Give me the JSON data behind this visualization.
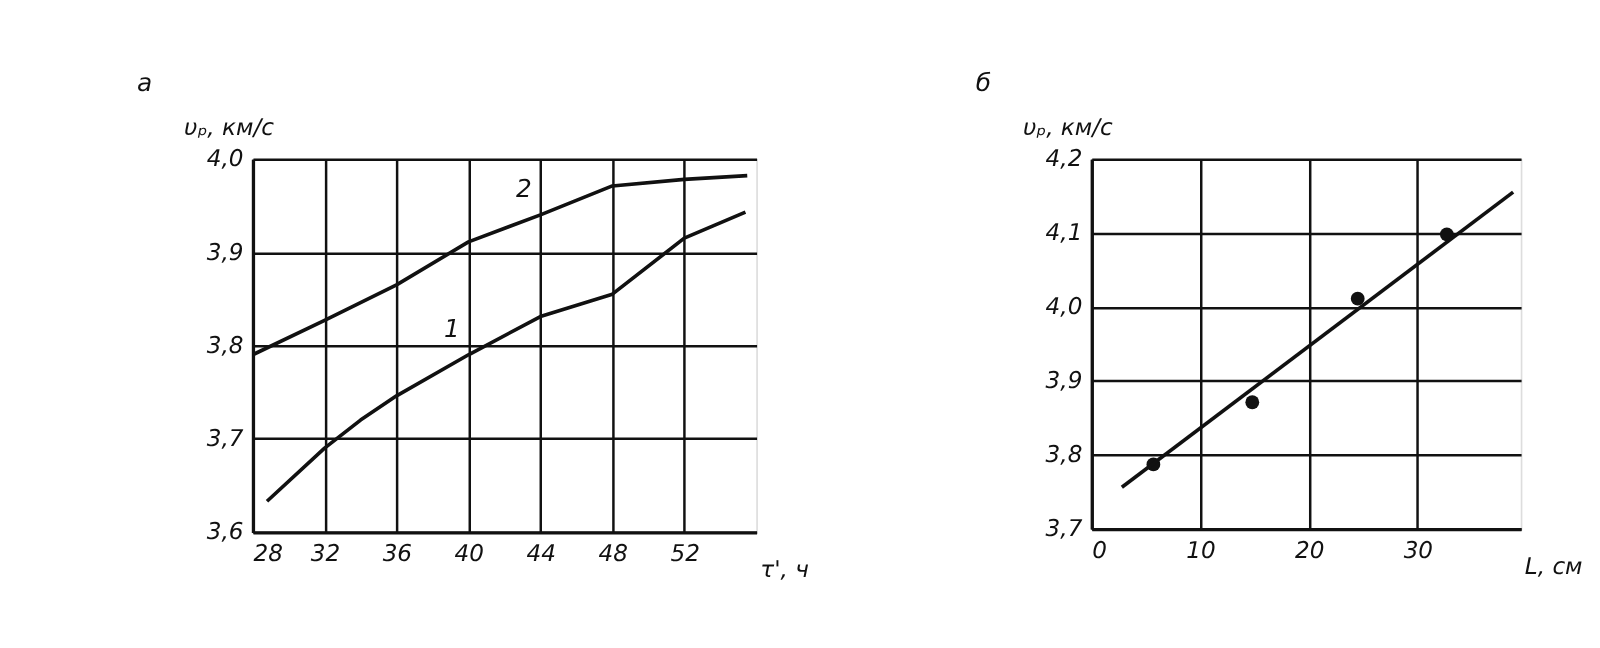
{
  "chart_data": [
    {
      "type": "line",
      "title": "а",
      "xlabel": "τ', ч",
      "ylabel": "υₚ, км/с",
      "grid": true,
      "line_style": "solid",
      "xlim": [
        28,
        56
      ],
      "xticks": [
        28,
        32,
        36,
        40,
        44,
        48,
        52
      ],
      "ylim": [
        3.6,
        4.0
      ],
      "yticks": [
        {
          "value": 3.6,
          "label": "3,6"
        },
        {
          "value": 3.7,
          "label": "3,7"
        },
        {
          "value": 3.8,
          "label": "3,8"
        },
        {
          "value": 3.9,
          "label": "3,9"
        },
        {
          "value": 4.0,
          "label": "4,0"
        }
      ],
      "series": [
        {
          "name": "1",
          "color": "#111111",
          "x": [
            28.8,
            32,
            34,
            36,
            40,
            44,
            48,
            52,
            55.4
          ],
          "values": [
            3.633,
            3.69,
            3.72,
            3.746,
            3.79,
            3.831,
            3.855,
            3.915,
            3.943
          ]
        },
        {
          "name": "2",
          "color": "#111111",
          "x": [
            28,
            32,
            36,
            40,
            44,
            48,
            52,
            55.5
          ],
          "values": [
            3.79,
            3.827,
            3.865,
            3.911,
            3.94,
            3.971,
            3.978,
            3.982
          ]
        }
      ]
    },
    {
      "type": "scatter",
      "title": "б",
      "xlabel": "L, см",
      "ylabel": "υₚ, км/с",
      "grid": true,
      "marker": "circle",
      "xlim": [
        0,
        39.5
      ],
      "xticks": [
        0,
        10,
        20,
        30
      ],
      "ylim": [
        3.7,
        4.2
      ],
      "yticks": [
        {
          "value": 3.7,
          "label": "3,7"
        },
        {
          "value": 3.8,
          "label": "3,8"
        },
        {
          "value": 3.9,
          "label": "3,9"
        },
        {
          "value": 4.0,
          "label": "4,0"
        },
        {
          "value": 4.1,
          "label": "4,1"
        },
        {
          "value": 4.2,
          "label": "4,2"
        }
      ],
      "series": [
        {
          "color": "#111111",
          "x": [
            5.7,
            14.8,
            24.5,
            32.7
          ],
          "values": [
            3.787,
            3.871,
            4.011,
            4.098
          ]
        },
        {
          "type": "line",
          "marker": "none",
          "line_style": "solid",
          "color": "#111111",
          "x": [
            2.8,
            38.8
          ],
          "values": [
            3.756,
            4.155
          ]
        }
      ]
    }
  ]
}
